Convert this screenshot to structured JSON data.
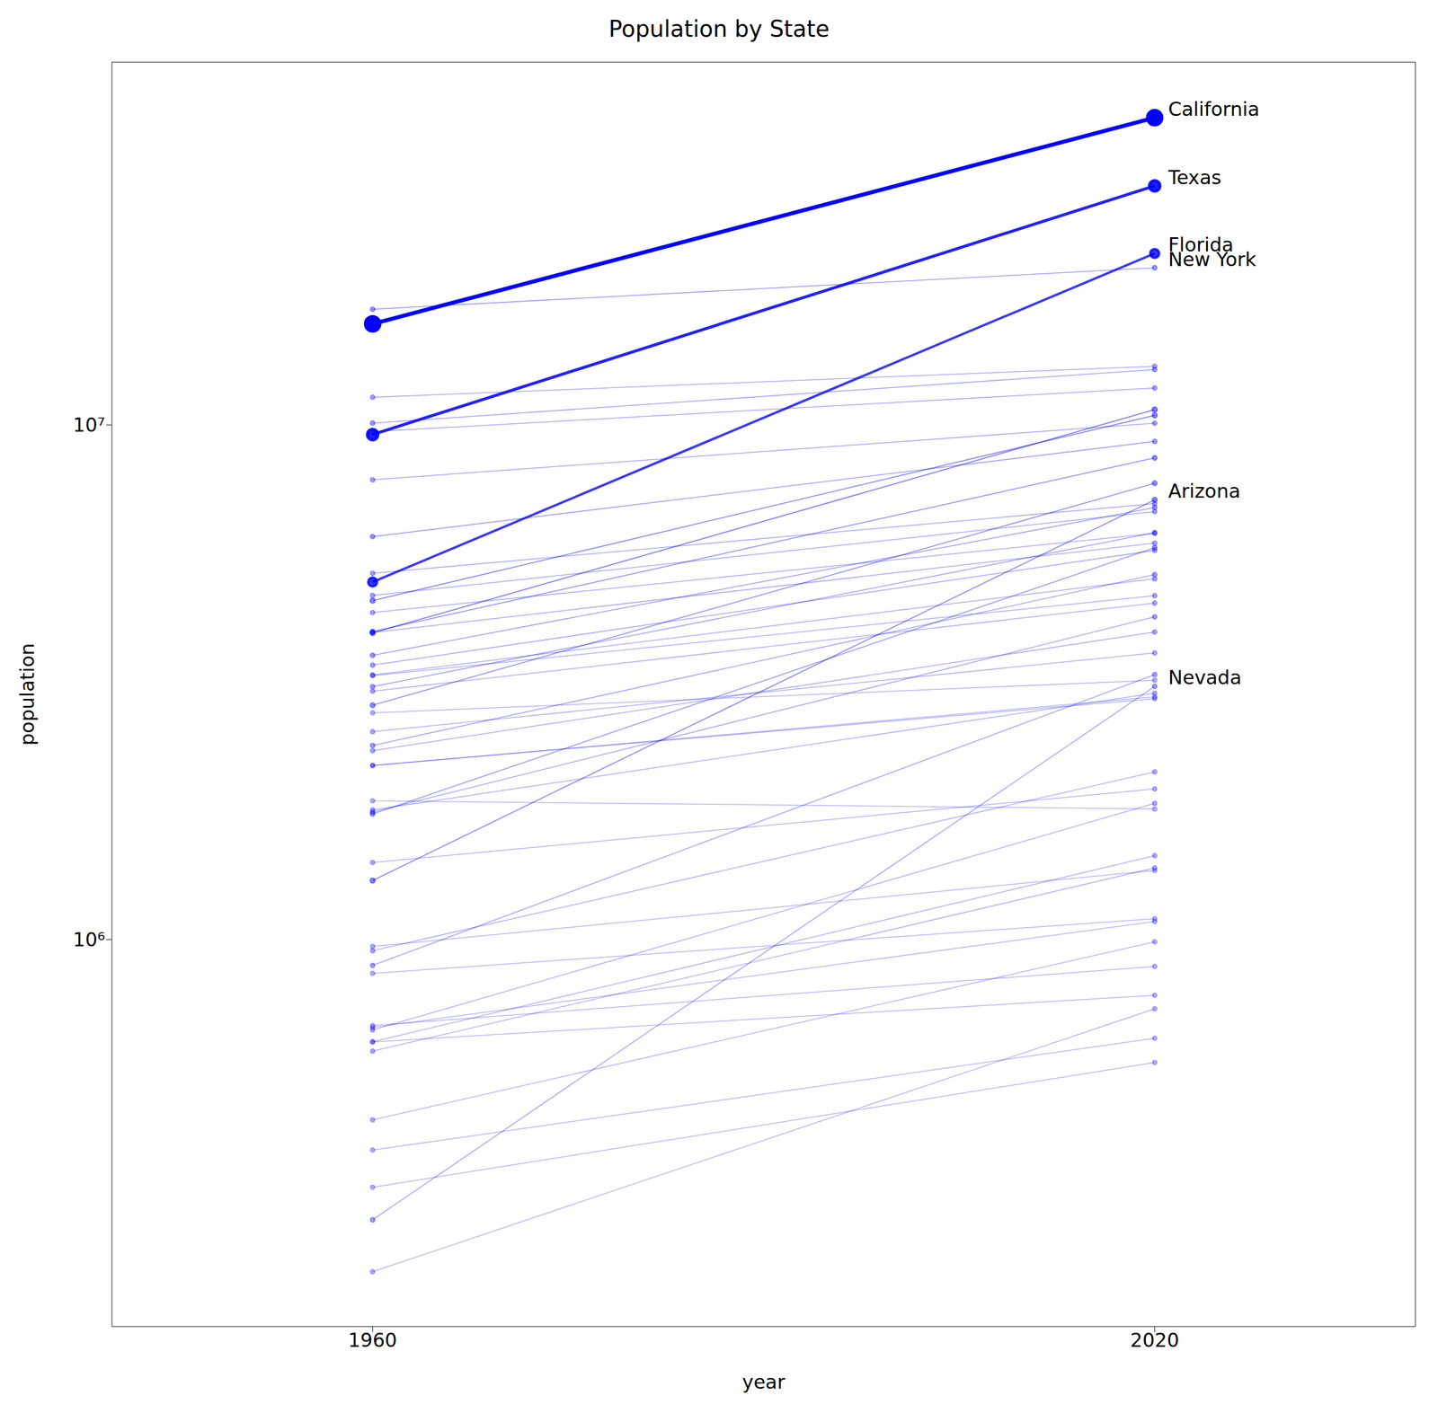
{
  "chart_data": {
    "type": "line",
    "title": "Population by State",
    "x_label": "year",
    "y_label": "population",
    "x": [
      1960,
      2020
    ],
    "xlim": [
      1940,
      2040
    ],
    "xticks": [
      1960,
      2020
    ],
    "ylim": [
      177000,
      50700000
    ],
    "yticks": [
      {
        "value": 1000000,
        "label": "10⁶"
      },
      {
        "value": 10000000,
        "label": "10⁷"
      }
    ],
    "log": "y",
    "marker": "o",
    "series": [
      {
        "color": "#0000ff",
        "values": [
          3266740,
          5024279
        ]
      },
      {
        "color": "#0000ff",
        "values": [
          226167,
          733391
        ]
      },
      {
        "color": "#0000ff",
        "values": [
          1786272,
          3011524
        ]
      },
      {
        "color": "#0000ff",
        "values": [
          1753947,
          5773714
        ]
      },
      {
        "color": "#0000ff",
        "values": [
          2535234,
          3605944
        ]
      },
      {
        "color": "#0000ff",
        "values": [
          446292,
          989948
        ]
      },
      {
        "color": "#0000ff",
        "values": [
          3943116,
          10711908
        ]
      },
      {
        "color": "#0000ff",
        "values": [
          632772,
          1455271
        ]
      },
      {
        "color": "#0000ff",
        "values": [
          667191,
          1839106
        ]
      },
      {
        "color": "#0000ff",
        "values": [
          10081158,
          12812508
        ]
      },
      {
        "color": "#0000ff",
        "values": [
          4662498,
          6785528
        ]
      },
      {
        "color": "#0000ff",
        "values": [
          2757537,
          3190369
        ]
      },
      {
        "color": "#0000ff",
        "values": [
          2178611,
          2937880
        ]
      },
      {
        "color": "#0000ff",
        "values": [
          3038156,
          4505836
        ]
      },
      {
        "color": "#0000ff",
        "values": [
          3257022,
          4657757
        ]
      },
      {
        "color": "#0000ff",
        "values": [
          969265,
          1362359
        ]
      },
      {
        "color": "#0000ff",
        "values": [
          3100689,
          6177224
        ]
      },
      {
        "color": "#0000ff",
        "values": [
          5148578,
          7029917
        ]
      },
      {
        "color": "#0000ff",
        "values": [
          7823194,
          10077331
        ]
      },
      {
        "color": "#0000ff",
        "values": [
          3413864,
          5706494
        ]
      },
      {
        "color": "#0000ff",
        "values": [
          2178141,
          2961279
        ]
      },
      {
        "color": "#0000ff",
        "values": [
          4319813,
          6154913
        ]
      },
      {
        "color": "#0000ff",
        "values": [
          674767,
          1084225
        ]
      },
      {
        "color": "#0000ff",
        "values": [
          1411330,
          1961504
        ]
      },
      {
        "color": "#0000ff",
        "values": [
          606921,
          1377529
        ]
      },
      {
        "color": "#0000ff",
        "values": [
          6066782,
          9288994
        ]
      },
      {
        "color": "#0000ff",
        "values": [
          951023,
          2117522
        ]
      },
      {
        "color": "#0000ff",
        "values": [
          4556155,
          10439388
        ]
      },
      {
        "color": "#0000ff",
        "values": [
          632446,
          779094
        ]
      },
      {
        "color": "#0000ff",
        "values": [
          9706397,
          11799448
        ]
      },
      {
        "color": "#0000ff",
        "values": [
          2328284,
          3959353
        ]
      },
      {
        "color": "#0000ff",
        "values": [
          1768687,
          4237256
        ]
      },
      {
        "color": "#0000ff",
        "values": [
          11319366,
          13002700
        ]
      },
      {
        "color": "#0000ff",
        "values": [
          859488,
          1097379
        ]
      },
      {
        "color": "#0000ff",
        "values": [
          2382594,
          5118425
        ]
      },
      {
        "color": "#0000ff",
        "values": [
          680514,
          886667
        ]
      },
      {
        "color": "#0000ff",
        "values": [
          3567089,
          6910840
        ]
      },
      {
        "color": "#0000ff",
        "values": [
          890627,
          3271616
        ]
      },
      {
        "color": "#0000ff",
        "values": [
          389881,
          643077
        ]
      },
      {
        "color": "#0000ff",
        "values": [
          3966949,
          8631393
        ]
      },
      {
        "color": "#0000ff",
        "values": [
          2853214,
          7705281
        ]
      },
      {
        "color": "#0000ff",
        "values": [
          1860421,
          1793716
        ]
      },
      {
        "color": "#0000ff",
        "values": [
          3951777,
          5893718
        ]
      },
      {
        "color": "#0000ff",
        "values": [
          330066,
          576851
        ]
      },
      {
        "name": "Nevada",
        "color": "#0000ff",
        "values": [
          285278,
          3104614
        ]
      },
      {
        "name": "Arizona",
        "color": "#0000ff",
        "values": [
          1302161,
          7151502
        ]
      },
      {
        "name": "New York",
        "color": "#0000ff",
        "values": [
          16782304,
          20201249
        ]
      },
      {
        "name": "Florida",
        "color": "#0000ff",
        "values": [
          4951560,
          21538187
        ]
      },
      {
        "name": "Texas",
        "color": "#0000ff",
        "values": [
          9579677,
          29145505
        ]
      },
      {
        "name": "California",
        "color": "#0000ff",
        "values": [
          15717204,
          39538223
        ]
      }
    ]
  }
}
